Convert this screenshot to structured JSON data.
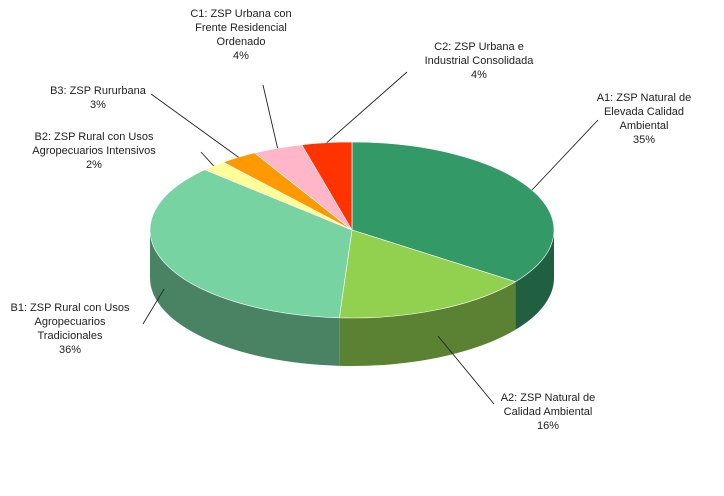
{
  "chart_data": {
    "type": "pie",
    "style": "3d",
    "start_position": "12 o'clock",
    "direction": "clockwise",
    "legend": "none",
    "slices": [
      {
        "key": "A1",
        "label_lines": [
          "A1: ZSP Natural de",
          "Elevada Calidad",
          "Ambiental"
        ],
        "value": 35,
        "percent_label": "35%",
        "color": "#339966"
      },
      {
        "key": "A2",
        "label_lines": [
          "A2: ZSP Natural de",
          "Calidad Ambiental"
        ],
        "value": 16,
        "percent_label": "16%",
        "color": "#92D050"
      },
      {
        "key": "B1",
        "label_lines": [
          "B1: ZSP Rural con Usos",
          "Agropecuarios",
          "Tradicionales"
        ],
        "value": 36,
        "percent_label": "36%",
        "color": "#77D3A1"
      },
      {
        "key": "B2",
        "label_lines": [
          "B2: ZSP Rural con Usos",
          "Agropecuarios Intensivos"
        ],
        "value": 2,
        "percent_label": "2%",
        "color": "#FFFF99"
      },
      {
        "key": "B3",
        "label_lines": [
          "B3: ZSP Rururbana"
        ],
        "value": 3,
        "percent_label": "3%",
        "color": "#FF9900"
      },
      {
        "key": "C1",
        "label_lines": [
          "C1: ZSP Urbana con",
          "Frente Residencial",
          "Ordenado"
        ],
        "value": 4,
        "percent_label": "4%",
        "color": "#FFB6C8"
      },
      {
        "key": "C2",
        "label_lines": [
          "C2: ZSP Urbana e",
          "Industrial Consolidada"
        ],
        "value": 4,
        "percent_label": "4%",
        "color": "#FF3300"
      }
    ]
  }
}
